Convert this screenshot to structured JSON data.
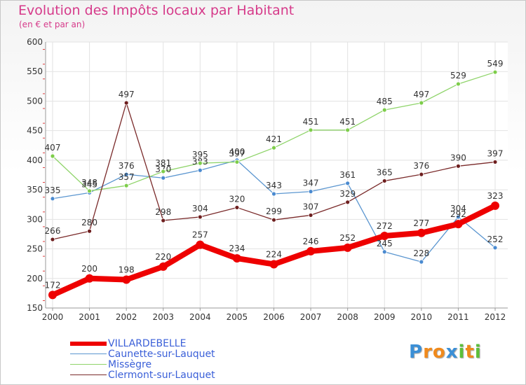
{
  "chart_data": {
    "type": "line",
    "title": "Evolution des Impôts locaux par Habitant",
    "subtitle": "(en € et par an)",
    "xlabel": "",
    "ylabel": "",
    "ylim": [
      150,
      600
    ],
    "yticks": [
      150,
      200,
      250,
      300,
      350,
      400,
      450,
      500,
      550,
      600
    ],
    "categories": [
      "2000",
      "2001",
      "2002",
      "2003",
      "2004",
      "2005",
      "2006",
      "2007",
      "2008",
      "2009",
      "2010",
      "2011",
      "2012"
    ],
    "grid": true,
    "legend": "bottom-left",
    "series": [
      {
        "name": "Caunette-sur-Lauquet",
        "color": "#5b96d0",
        "marker": "#4a8ad0",
        "values": [
          335,
          345,
          376,
          370,
          383,
          400,
          343,
          347,
          361,
          245,
          228,
          304,
          252
        ],
        "labels": [
          "335",
          "345",
          "376",
          "370",
          "383",
          "400",
          "343",
          "347",
          "361",
          "245",
          "228",
          "304",
          "252"
        ]
      },
      {
        "name": "Missègre",
        "color": "#8fd46a",
        "marker": "#7dcd4a",
        "values": [
          407,
          348,
          357,
          381,
          395,
          397,
          421,
          451,
          451,
          485,
          497,
          529,
          549
        ],
        "labels": [
          "407",
          "348",
          "357",
          "381",
          "395",
          "397",
          "421",
          "451",
          "451",
          "485",
          "497",
          "529",
          "549"
        ]
      },
      {
        "name": "Clermont-sur-Lauquet",
        "color": "#7a2a2a",
        "marker": "#6e1f1f",
        "values": [
          266,
          280,
          497,
          298,
          304,
          320,
          299,
          307,
          329,
          365,
          376,
          390,
          397
        ],
        "labels": [
          "266",
          "280",
          "497",
          "298",
          "304",
          "320",
          "299",
          "307",
          "329",
          "365",
          "376",
          "390",
          "397"
        ]
      },
      {
        "name": "VILLARDEBELLE",
        "color": "#ee0000",
        "marker": "#ee0000",
        "values": [
          172,
          200,
          198,
          220,
          257,
          234,
          224,
          246,
          252,
          272,
          277,
          292,
          323
        ],
        "labels": [
          "172",
          "200",
          "198",
          "220",
          "257",
          "234",
          "224",
          "246",
          "252",
          "272",
          "277",
          "292",
          "323"
        ]
      }
    ]
  },
  "legend": {
    "items": [
      {
        "name": "VILLARDEBELLE",
        "color": "#ee0000"
      },
      {
        "name": "Caunette-sur-Lauquet",
        "color": "#5b96d0"
      },
      {
        "name": "Missègre",
        "color": "#8fd46a"
      },
      {
        "name": "Clermont-sur-Lauquet",
        "color": "#7a2a2a"
      }
    ]
  },
  "logo": {
    "letters": [
      "P",
      "r",
      "o",
      "x",
      "i",
      "t",
      "i"
    ],
    "colors": [
      "#3b8fd6",
      "#f08a1c",
      "#f08a1c",
      "#3b8fd6",
      "#5cbf3a",
      "#f08a1c",
      "#5cbf3a"
    ]
  }
}
